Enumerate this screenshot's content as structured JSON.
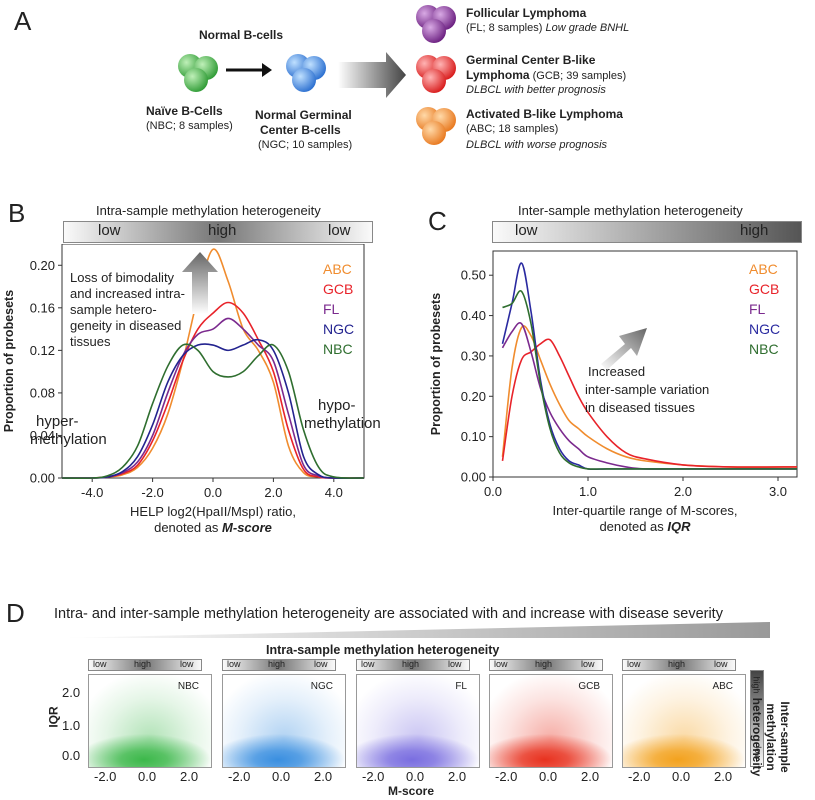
{
  "panelA": {
    "letter": "A",
    "normal_title": "Normal B-cells",
    "naive_label": "Naïve B-Cells",
    "naive_sub": "(NBC; 8 samples)",
    "ngc_label_1": "Normal Germinal",
    "ngc_label_2": "Center B-cells",
    "ngc_sub": "(NGC; 10 samples)",
    "fl_title": "Follicular  Lymphoma",
    "fl_sub_plain": "(FL; 8 samples) ",
    "fl_sub_ital": "Low grade BNHL",
    "gcb_title_1": "Germinal Center B-like",
    "gcb_title_2": "Lymphoma",
    "gcb_sub_inline": " (GCB; 39 samples)",
    "gcb_ital": "DLBCL with better  prognosis",
    "abc_title": "Activated B-like Lymphoma",
    "abc_sub": "(ABC; 18 samples)",
    "abc_ital": "DLBCL with worse prognosis",
    "colors": {
      "fl": "#7b2a8e",
      "gcb": "#e8232a",
      "abc": "#f08c2e",
      "nbc": "#2fa33a",
      "ngc": "#2a74d1"
    }
  },
  "panelB": {
    "letter": "B",
    "bar_title": "Intra-sample methylation heterogeneity",
    "bar_low_left": "low",
    "bar_high": "high",
    "bar_low_right": "low",
    "annotation": [
      "Loss of bimodality",
      "and increased intra-",
      "sample hetero-",
      "geneity in diseased",
      "tissues"
    ],
    "left_note": [
      "hyper-",
      "methylation"
    ],
    "right_note": [
      "hypo-",
      "methylation"
    ]
  },
  "panelC": {
    "letter": "C",
    "bar_title": "Inter-sample methylation heterogeneity",
    "bar_low": "low",
    "bar_high": "high",
    "annotation": [
      "Increased",
      "inter-sample variation",
      "in diseased tissues"
    ]
  },
  "panelD": {
    "letter": "D",
    "banner": "Intra- and inter-sample methylation heterogeneity are associated with and increase with disease severity",
    "intra_title": "Intra-sample methylation heterogeneity",
    "mini_low_left": "low",
    "mini_high": "high",
    "mini_low_right": "low",
    "vbar_high": "high",
    "vbar_low": "low",
    "inter_title": [
      "Inter-sample",
      "methylation",
      "heterogeneity"
    ],
    "ylabel": "IQR",
    "xlabel": "M-score",
    "yticks": [
      "2.0",
      "1.0",
      "0.0"
    ],
    "xticks": [
      "-2.0",
      "0.0",
      "2.0"
    ],
    "maps": [
      {
        "label": "NBC",
        "color": "#3cb84a"
      },
      {
        "label": "NGC",
        "color": "#3a8fe0"
      },
      {
        "label": "FL",
        "color": "#7a6ee0"
      },
      {
        "label": "GCB",
        "color": "#e8321f"
      },
      {
        "label": "ABC",
        "color": "#f3a21e"
      }
    ]
  },
  "chart_data": [
    {
      "type": "line",
      "panel": "B",
      "xlabel": "HELP log2(HpaII/MspI) ratio,",
      "xlabel2": "denoted as",
      "xlabel_emph": "M-score",
      "ylabel": "Proportion of probesets",
      "xlim": [
        -5,
        5
      ],
      "ylim": [
        0,
        0.22
      ],
      "xticks": [
        -4,
        -2,
        0,
        2,
        4
      ],
      "xtick_labels": [
        "-4.0",
        "-2.0",
        "0.0",
        "2.0",
        "4.0"
      ],
      "yticks": [
        0,
        0.04,
        0.08,
        0.12,
        0.16,
        0.2
      ],
      "ytick_labels": [
        "0.00",
        "0.04",
        "0.08",
        "0.12",
        "0.16",
        "0.20"
      ],
      "legend_position": "top-right",
      "x": [
        -5.0,
        -4.0,
        -3.5,
        -3.0,
        -2.5,
        -2.0,
        -1.5,
        -1.0,
        -0.5,
        0.0,
        0.5,
        1.0,
        1.5,
        2.0,
        2.5,
        3.0,
        3.5,
        4.0,
        5.0
      ],
      "series": [
        {
          "name": "ABC",
          "color": "#f08c2e",
          "values": [
            0.0,
            0.0,
            0.001,
            0.003,
            0.01,
            0.028,
            0.06,
            0.11,
            0.17,
            0.215,
            0.185,
            0.14,
            0.12,
            0.09,
            0.03,
            0.005,
            0.001,
            0.0,
            0.0
          ]
        },
        {
          "name": "GCB",
          "color": "#e8232a",
          "values": [
            0.0,
            0.0,
            0.001,
            0.004,
            0.012,
            0.035,
            0.07,
            0.11,
            0.14,
            0.155,
            0.165,
            0.155,
            0.13,
            0.1,
            0.045,
            0.008,
            0.001,
            0.0,
            0.0
          ]
        },
        {
          "name": "FL",
          "color": "#7b2a8e",
          "values": [
            0.0,
            0.0,
            0.001,
            0.005,
            0.015,
            0.04,
            0.08,
            0.115,
            0.135,
            0.14,
            0.15,
            0.14,
            0.125,
            0.11,
            0.06,
            0.012,
            0.002,
            0.0,
            0.0
          ]
        },
        {
          "name": "NGC",
          "color": "#23238f",
          "values": [
            0.0,
            0.0,
            0.001,
            0.006,
            0.02,
            0.05,
            0.09,
            0.115,
            0.125,
            0.125,
            0.12,
            0.125,
            0.13,
            0.12,
            0.08,
            0.02,
            0.003,
            0.0,
            0.0
          ]
        },
        {
          "name": "NBC",
          "color": "#2f6e2f",
          "values": [
            0.0,
            0.0,
            0.002,
            0.01,
            0.03,
            0.07,
            0.105,
            0.125,
            0.12,
            0.1,
            0.095,
            0.1,
            0.115,
            0.125,
            0.1,
            0.045,
            0.01,
            0.001,
            0.0
          ]
        }
      ]
    },
    {
      "type": "line",
      "panel": "C",
      "xlabel": "Inter-quartile range of M-scores,",
      "xlabel2": "denoted as",
      "xlabel_emph": "IQR",
      "ylabel": "Proportion of probesets",
      "xlim": [
        0,
        3.2
      ],
      "ylim": [
        0,
        0.56
      ],
      "xticks": [
        0,
        1,
        2,
        3
      ],
      "xtick_labels": [
        "0.0",
        "1.0",
        "2.0",
        "3.0"
      ],
      "yticks": [
        0,
        0.1,
        0.2,
        0.3,
        0.4,
        0.5
      ],
      "ytick_labels": [
        "0.00",
        "0.10",
        "0.20",
        "0.30",
        "0.40",
        "0.50"
      ],
      "legend_position": "top-right",
      "x": [
        0.1,
        0.2,
        0.3,
        0.4,
        0.5,
        0.6,
        0.7,
        0.8,
        0.9,
        1.0,
        1.2,
        1.4,
        1.6,
        2.0,
        2.5,
        3.2
      ],
      "series": [
        {
          "name": "ABC",
          "color": "#f08c2e",
          "values": [
            0.05,
            0.27,
            0.37,
            0.35,
            0.29,
            0.23,
            0.18,
            0.14,
            0.12,
            0.1,
            0.07,
            0.05,
            0.04,
            0.03,
            0.025,
            0.025
          ]
        },
        {
          "name": "GCB",
          "color": "#e8232a",
          "values": [
            0.04,
            0.2,
            0.29,
            0.31,
            0.33,
            0.34,
            0.3,
            0.25,
            0.2,
            0.16,
            0.1,
            0.06,
            0.045,
            0.03,
            0.025,
            0.025
          ]
        },
        {
          "name": "FL",
          "color": "#7b2a8e",
          "values": [
            0.32,
            0.36,
            0.38,
            0.31,
            0.22,
            0.16,
            0.12,
            0.09,
            0.07,
            0.05,
            0.035,
            0.025,
            0.02,
            0.02,
            0.02,
            0.02
          ]
        },
        {
          "name": "NGC",
          "color": "#2a2aa0",
          "values": [
            0.33,
            0.43,
            0.53,
            0.41,
            0.24,
            0.13,
            0.07,
            0.04,
            0.03,
            0.02,
            0.02,
            0.02,
            0.02,
            0.02,
            0.02,
            0.02
          ]
        },
        {
          "name": "NBC",
          "color": "#2f6e2f",
          "values": [
            0.42,
            0.43,
            0.46,
            0.38,
            0.23,
            0.12,
            0.06,
            0.035,
            0.025,
            0.02,
            0.02,
            0.02,
            0.02,
            0.02,
            0.02,
            0.02
          ]
        }
      ]
    }
  ]
}
